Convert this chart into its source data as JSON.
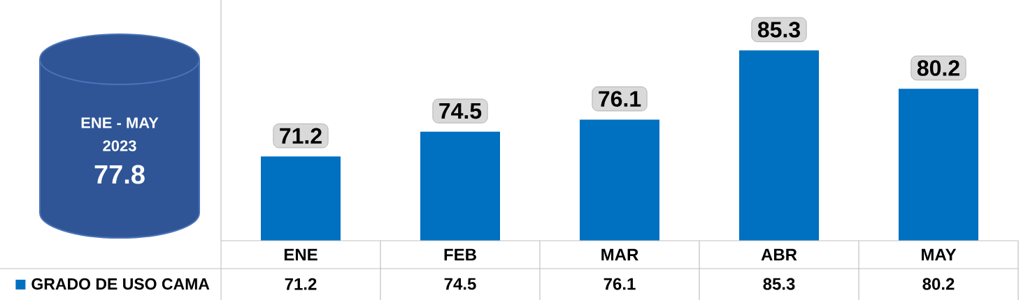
{
  "chart_data": {
    "type": "bar",
    "categories": [
      "ENE",
      "FEB",
      "MAR",
      "ABR",
      "MAY"
    ],
    "series": [
      {
        "name": "GRADO DE USO CAMA",
        "color": "#0070c0",
        "values": [
          71.2,
          74.5,
          76.1,
          85.3,
          80.2
        ]
      }
    ],
    "ylim": [
      60,
      92
    ],
    "data_labels": true,
    "legend": "bottom left",
    "annotations": [
      "ENE - MAY",
      "2023",
      "77.8",
      {
        "text": "71.2",
        "x": "ENE",
        "y": 71.2
      },
      {
        "text": "74.5",
        "x": "FEB",
        "y": 74.5
      },
      {
        "text": "76.1",
        "x": "MAR",
        "y": 76.1
      },
      {
        "text": "85.3",
        "x": "ABR",
        "y": 85.3
      },
      {
        "text": "80.2",
        "x": "MAY",
        "y": 80.2
      }
    ]
  }
}
